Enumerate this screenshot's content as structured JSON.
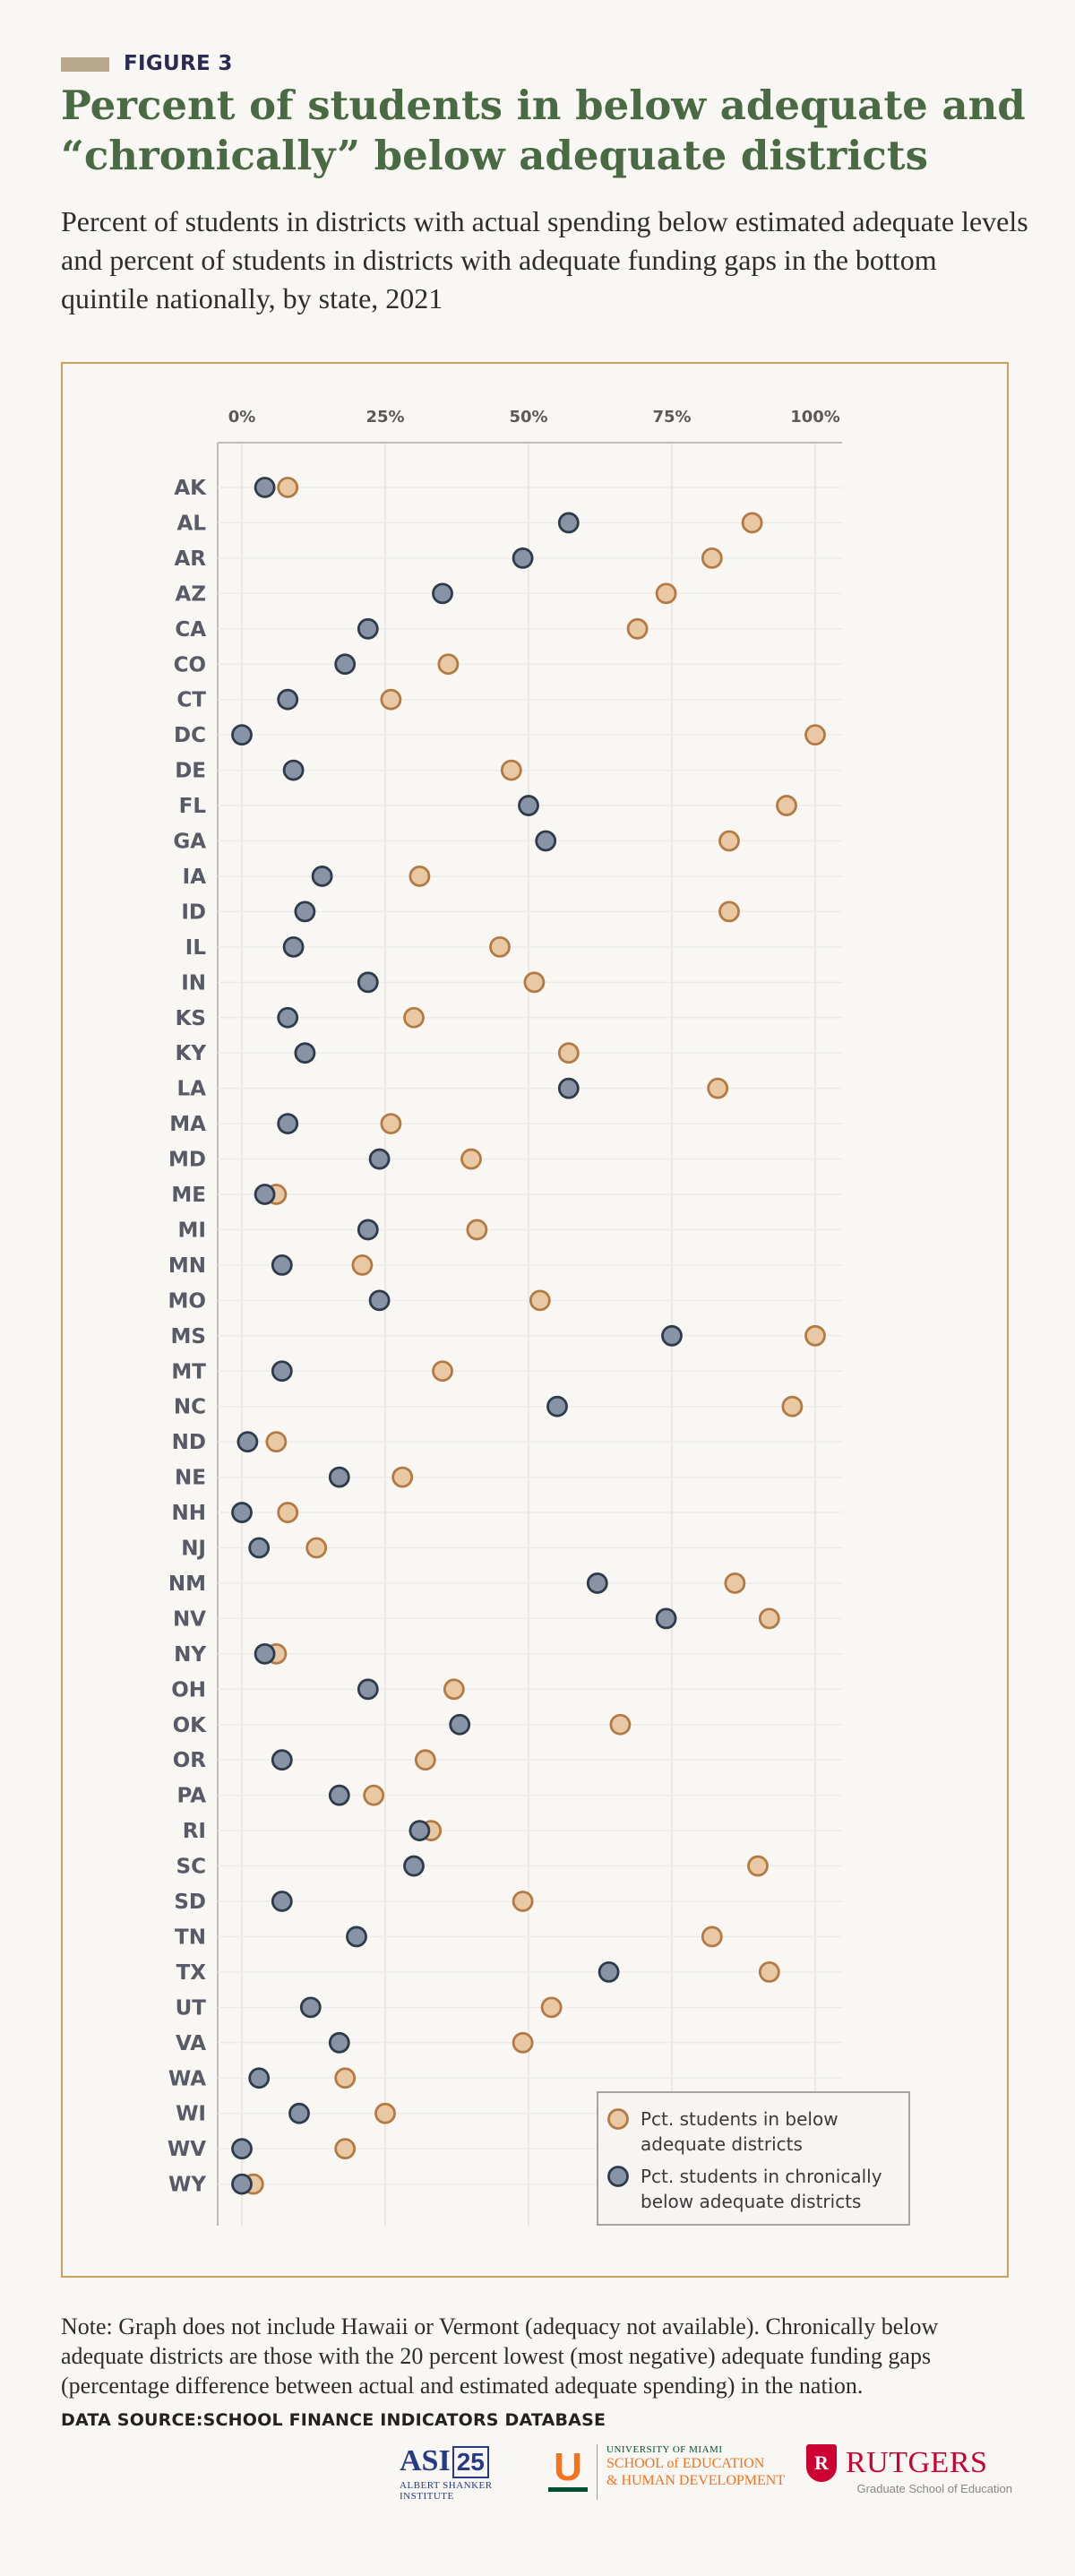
{
  "header": {
    "figure_label": "FIGURE 3",
    "title": "Percent of students in below adequate and “chronically” below adequate districts",
    "subtitle": "Percent of students in districts with actual spending below estimated adequate levels and percent of students in districts with adequate funding gaps in the bottom quintile nationally, by state, 2021"
  },
  "footer": {
    "note": "Note: Graph does not include Hawaii or Vermont (adequacy not available). Chronically below adequate districts are those with the 20 percent lowest (most negative) adequate funding gaps (percentage difference between actual and estimated adequate spending) in the nation.",
    "source": "DATA SOURCE:SCHOOL FINANCE INDICATORS DATABASE"
  },
  "logos": {
    "asi": {
      "name": "ASI",
      "badge": "25",
      "caption": "ALBERT SHANKER INSTITUTE"
    },
    "miami": {
      "mark": "U",
      "line1": "UNIVERSITY OF MIAMI",
      "line2": "SCHOOL of EDUCATION",
      "line3": "& HUMAN DEVELOPMENT"
    },
    "rutgers": {
      "mark": "R",
      "name": "RUTGERS",
      "caption": "Graduate School of Education"
    }
  },
  "colors": {
    "below": "#e8c9a4",
    "below_stroke": "#b47a44",
    "chronic": "#8893a6",
    "chronic_stroke": "#2f3a4a",
    "frame": "#c8a35e",
    "title": "#4a6a44"
  },
  "chart_data": {
    "type": "scatter",
    "orientation": "dot plot, categories on y-axis",
    "x_ticks": [
      "0%",
      "25%",
      "50%",
      "75%",
      "100%"
    ],
    "xlim": [
      0,
      100
    ],
    "x_unit": "percent",
    "grid": true,
    "legend_position": "bottom-right",
    "series": [
      {
        "name": "Pct. students in below adequate districts",
        "key": "below"
      },
      {
        "name": "Pct. students in chronically below adequate districts",
        "key": "chronic"
      }
    ],
    "states": [
      {
        "state": "AK",
        "below": 8,
        "chronic": 4
      },
      {
        "state": "AL",
        "below": 89,
        "chronic": 57
      },
      {
        "state": "AR",
        "below": 82,
        "chronic": 49
      },
      {
        "state": "AZ",
        "below": 74,
        "chronic": 35
      },
      {
        "state": "CA",
        "below": 69,
        "chronic": 22
      },
      {
        "state": "CO",
        "below": 36,
        "chronic": 18
      },
      {
        "state": "CT",
        "below": 26,
        "chronic": 8
      },
      {
        "state": "DC",
        "below": 100,
        "chronic": 0
      },
      {
        "state": "DE",
        "below": 47,
        "chronic": 9
      },
      {
        "state": "FL",
        "below": 95,
        "chronic": 50
      },
      {
        "state": "GA",
        "below": 85,
        "chronic": 53
      },
      {
        "state": "IA",
        "below": 31,
        "chronic": 14
      },
      {
        "state": "ID",
        "below": 85,
        "chronic": 11
      },
      {
        "state": "IL",
        "below": 45,
        "chronic": 9
      },
      {
        "state": "IN",
        "below": 51,
        "chronic": 22
      },
      {
        "state": "KS",
        "below": 30,
        "chronic": 8
      },
      {
        "state": "KY",
        "below": 57,
        "chronic": 11
      },
      {
        "state": "LA",
        "below": 83,
        "chronic": 57
      },
      {
        "state": "MA",
        "below": 26,
        "chronic": 8
      },
      {
        "state": "MD",
        "below": 40,
        "chronic": 24
      },
      {
        "state": "ME",
        "below": 6,
        "chronic": 4
      },
      {
        "state": "MI",
        "below": 41,
        "chronic": 22
      },
      {
        "state": "MN",
        "below": 21,
        "chronic": 7
      },
      {
        "state": "MO",
        "below": 52,
        "chronic": 24
      },
      {
        "state": "MS",
        "below": 100,
        "chronic": 75
      },
      {
        "state": "MT",
        "below": 35,
        "chronic": 7
      },
      {
        "state": "NC",
        "below": 96,
        "chronic": 55
      },
      {
        "state": "ND",
        "below": 6,
        "chronic": 1
      },
      {
        "state": "NE",
        "below": 28,
        "chronic": 17
      },
      {
        "state": "NH",
        "below": 8,
        "chronic": 0
      },
      {
        "state": "NJ",
        "below": 13,
        "chronic": 3
      },
      {
        "state": "NM",
        "below": 86,
        "chronic": 62
      },
      {
        "state": "NV",
        "below": 92,
        "chronic": 74
      },
      {
        "state": "NY",
        "below": 6,
        "chronic": 4
      },
      {
        "state": "OH",
        "below": 37,
        "chronic": 22
      },
      {
        "state": "OK",
        "below": 66,
        "chronic": 38
      },
      {
        "state": "OR",
        "below": 32,
        "chronic": 7
      },
      {
        "state": "PA",
        "below": 23,
        "chronic": 17
      },
      {
        "state": "RI",
        "below": 33,
        "chronic": 31
      },
      {
        "state": "SC",
        "below": 90,
        "chronic": 30
      },
      {
        "state": "SD",
        "below": 49,
        "chronic": 7
      },
      {
        "state": "TN",
        "below": 82,
        "chronic": 20
      },
      {
        "state": "TX",
        "below": 92,
        "chronic": 64
      },
      {
        "state": "UT",
        "below": 54,
        "chronic": 12
      },
      {
        "state": "VA",
        "below": 49,
        "chronic": 17
      },
      {
        "state": "WA",
        "below": 18,
        "chronic": 3
      },
      {
        "state": "WI",
        "below": 25,
        "chronic": 10
      },
      {
        "state": "WV",
        "below": 18,
        "chronic": 0
      },
      {
        "state": "WY",
        "below": 2,
        "chronic": 0
      }
    ]
  },
  "legend": {
    "below": [
      "Pct. students in below",
      "adequate districts"
    ],
    "chronic": [
      "Pct. students in chronically",
      "below adequate districts"
    ]
  }
}
